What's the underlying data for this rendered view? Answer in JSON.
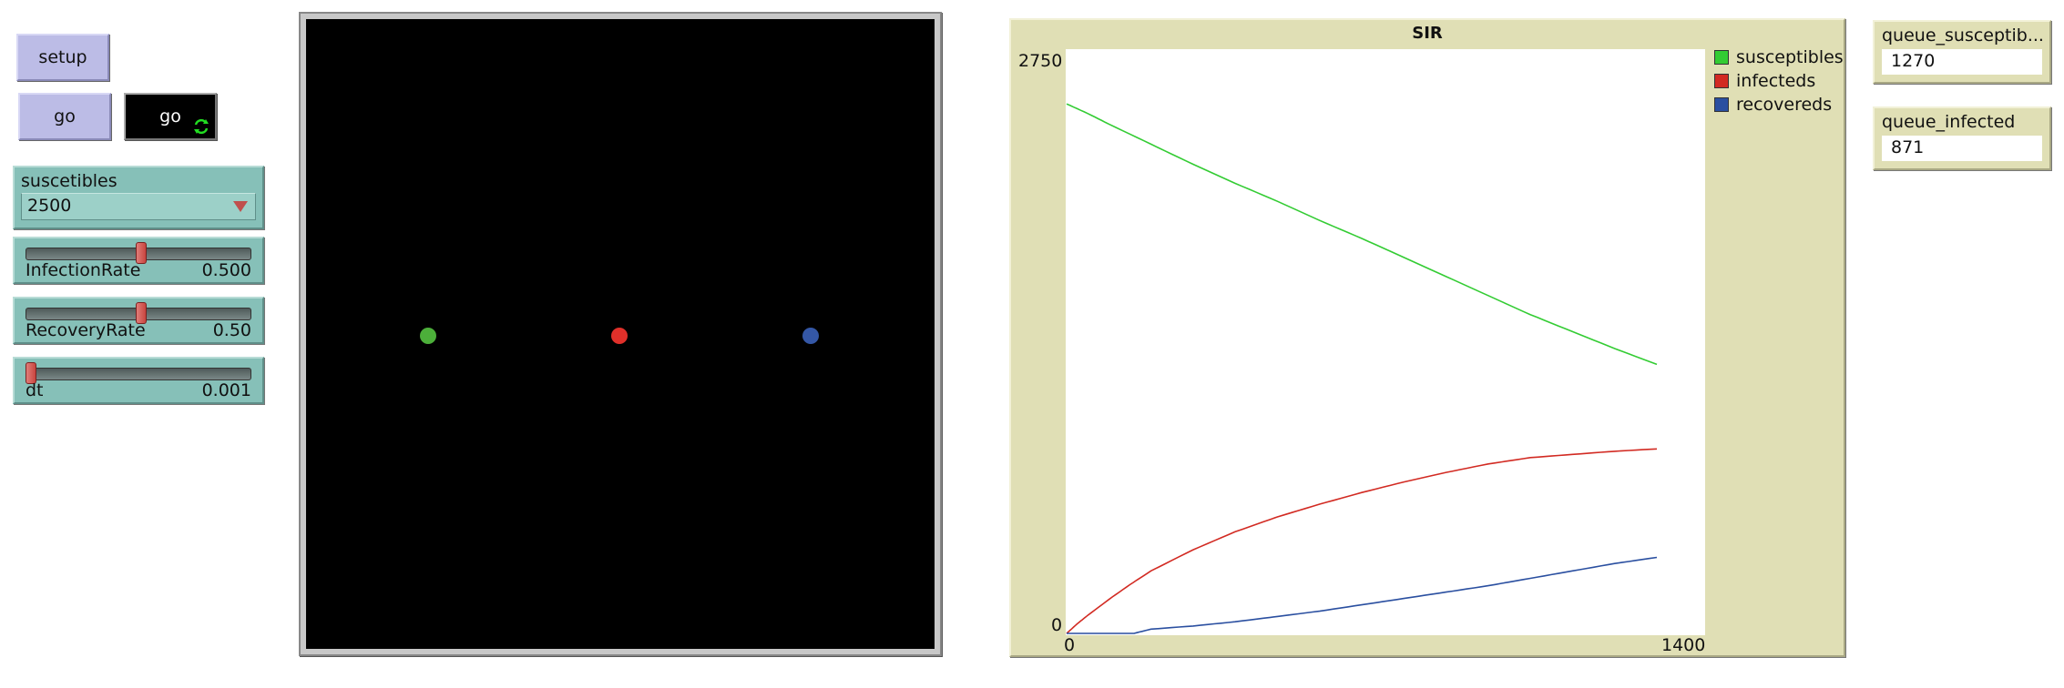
{
  "buttons": {
    "setup_label": "setup",
    "go_label": "go",
    "go_forever_label": "go"
  },
  "chooser": {
    "label": "suscetibles",
    "value": "2500"
  },
  "sliders": [
    {
      "label": "InfectionRate",
      "value": "0.500",
      "fraction": 0.5
    },
    {
      "label": "RecoveryRate",
      "value": "0.50",
      "fraction": 0.5
    },
    {
      "label": "dt",
      "value": "0.001",
      "fraction": 0.0
    }
  ],
  "world": {
    "turtles": [
      {
        "color": "#4caf3a"
      },
      {
        "color": "#e0302a"
      },
      {
        "color": "#3457a6"
      }
    ]
  },
  "plot": {
    "title": "SIR",
    "legend": [
      {
        "label": "susceptibles",
        "color": "#33cc33"
      },
      {
        "label": "infecteds",
        "color": "#d22a22"
      },
      {
        "label": "recovereds",
        "color": "#2a4fa0"
      }
    ]
  },
  "chart_data": {
    "type": "line",
    "title": "SIR",
    "xlim": [
      0,
      1400
    ],
    "ylim": [
      0,
      2750
    ],
    "x_tick_labels": [
      "0",
      "1400"
    ],
    "y_tick_labels": [
      "0",
      "2750"
    ],
    "legend_position": "top-right",
    "series": [
      {
        "name": "susceptibles",
        "color": "#33cc33",
        "x": [
          0,
          50,
          100,
          200,
          300,
          400,
          500,
          600,
          700,
          800,
          900,
          1000,
          1100,
          1200,
          1300,
          1400
        ],
        "y": [
          2500,
          2455,
          2405,
          2310,
          2215,
          2125,
          2040,
          1950,
          1865,
          1775,
          1685,
          1595,
          1505,
          1425,
          1345,
          1270
        ]
      },
      {
        "name": "infecteds",
        "color": "#d22a22",
        "x": [
          0,
          25,
          50,
          100,
          150,
          200,
          300,
          400,
          500,
          600,
          700,
          800,
          900,
          1000,
          1100,
          1200,
          1300,
          1400
        ],
        "y": [
          0,
          45,
          85,
          160,
          230,
          295,
          395,
          480,
          550,
          610,
          665,
          715,
          760,
          800,
          830,
          845,
          860,
          871
        ]
      },
      {
        "name": "recovereds",
        "color": "#2a4fa0",
        "x": [
          0,
          160,
          200,
          300,
          400,
          500,
          600,
          700,
          800,
          900,
          1000,
          1100,
          1200,
          1300,
          1400
        ],
        "y": [
          0,
          0,
          20,
          35,
          55,
          80,
          105,
          135,
          165,
          195,
          225,
          260,
          295,
          330,
          359
        ]
      }
    ]
  },
  "monitors": [
    {
      "label": "queue_susceptib...",
      "value": "1270"
    },
    {
      "label": "queue_infected",
      "value": "871"
    }
  ]
}
